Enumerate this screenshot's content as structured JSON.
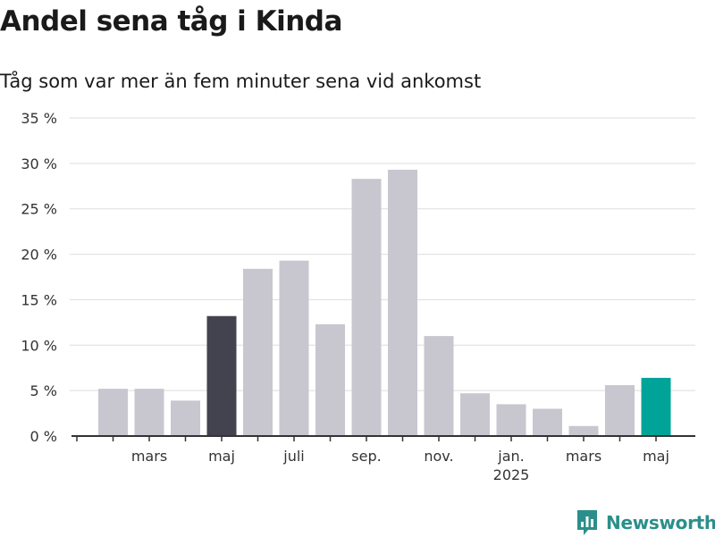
{
  "chart_data": {
    "type": "bar",
    "title": "Andel sena tåg i Kinda",
    "subtitle": "Tåg som var mer än fem minuter sena vid ankomst",
    "xlabel": "",
    "ylabel": "",
    "ylim": [
      0,
      35
    ],
    "y_ticks": [
      "0 %",
      "5 %",
      "10 %",
      "15 %",
      "20 %",
      "25 %",
      "30 %",
      "35 %"
    ],
    "grid": true,
    "categories": [
      "2024-01",
      "2024-02",
      "2024-03",
      "2024-04",
      "2024-05",
      "2024-06",
      "2024-07",
      "2024-08",
      "2024-09",
      "2024-10",
      "2024-11",
      "2024-12",
      "2025-01",
      "2025-02",
      "2025-03",
      "2025-04",
      "2025-05"
    ],
    "values": [
      null,
      5.2,
      5.2,
      3.9,
      13.2,
      18.4,
      19.3,
      12.3,
      28.3,
      29.3,
      11.0,
      4.7,
      3.5,
      3.0,
      1.1,
      5.6,
      6.4
    ],
    "x_tick_labels": [
      {
        "category": "2024-03",
        "label": "mars"
      },
      {
        "category": "2024-05",
        "label": "maj"
      },
      {
        "category": "2024-07",
        "label": "juli"
      },
      {
        "category": "2024-09",
        "label": "sep."
      },
      {
        "category": "2024-11",
        "label": "nov."
      },
      {
        "category": "2025-01",
        "label": "jan.",
        "sublabel": "2025"
      },
      {
        "category": "2025-03",
        "label": "mars"
      },
      {
        "category": "2025-05",
        "label": "maj"
      }
    ],
    "highlights": {
      "2024-05": "#43424f",
      "2025-05": "#00a398"
    },
    "bar_color": "#c8c7cf"
  },
  "colors": {
    "bar": "#c8c7cf",
    "highlight_dark": "#43424f",
    "highlight_accent": "#00a398",
    "brand": "#2a8f8a",
    "grid": "#dddddd",
    "axis": "#333333"
  },
  "brand": {
    "name": "Newsworthy",
    "icon": "newsworthy-logo-icon"
  }
}
